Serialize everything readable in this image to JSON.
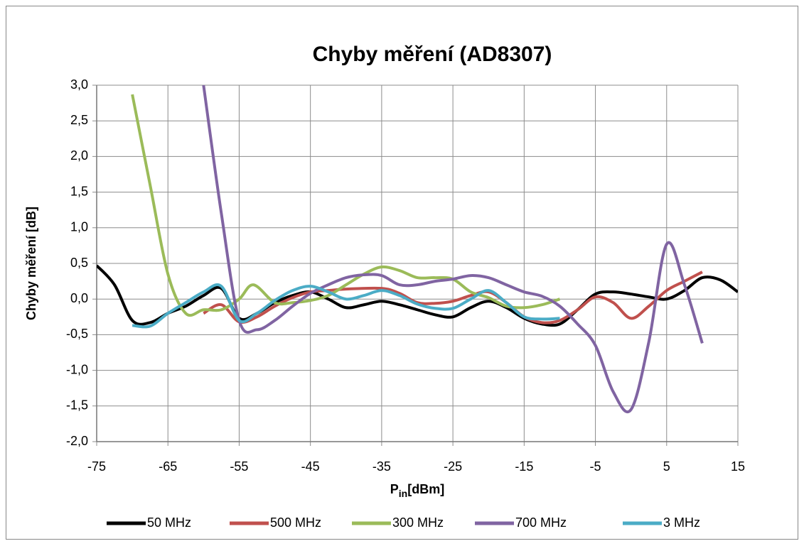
{
  "chart_data": {
    "type": "line",
    "title": "Chyby měření (AD8307)",
    "y_label": "Chyby měření [dB]",
    "x_label": {
      "main": "P",
      "sub": "in",
      "unit": "[dBm]"
    },
    "xlim": [
      -75,
      15
    ],
    "xticks": [
      -75,
      -65,
      -55,
      -45,
      -35,
      -25,
      -15,
      -5,
      5,
      15
    ],
    "ylim": [
      -2,
      3
    ],
    "yticks": [
      {
        "value": -2,
        "label": "-2,0"
      },
      {
        "value": -1.5,
        "label": "-1,5"
      },
      {
        "value": -1,
        "label": "-1,0"
      },
      {
        "value": -0.5,
        "label": "-0,5"
      },
      {
        "value": 0,
        "label": "0,0"
      },
      {
        "value": 0.5,
        "label": "0,5"
      },
      {
        "value": 1,
        "label": "1,0"
      },
      {
        "value": 1.5,
        "label": "1,5"
      },
      {
        "value": 2,
        "label": "2,0"
      },
      {
        "value": 2.5,
        "label": "2,5"
      },
      {
        "value": 3,
        "label": "3,0"
      }
    ],
    "grid": true,
    "legend": "bottom",
    "series": [
      {
        "name": "50 MHz",
        "color": "#000000",
        "x": [
          -75,
          -72.5,
          -70,
          -67.5,
          -65,
          -62.5,
          -60,
          -57.5,
          -55,
          -52.5,
          -50,
          -47.5,
          -45,
          -42.5,
          -40,
          -37.5,
          -35,
          -32.5,
          -30,
          -27.5,
          -25,
          -22.5,
          -20,
          -17.5,
          -15,
          -12.5,
          -10,
          -7.5,
          -5,
          -2.5,
          0,
          2.5,
          5,
          7.5,
          10,
          12.5,
          15
        ],
        "values": [
          0.47,
          0.2,
          -0.3,
          -0.33,
          -0.2,
          -0.1,
          0.05,
          0.15,
          -0.27,
          -0.2,
          -0.05,
          0.05,
          0.1,
          0.0,
          -0.12,
          -0.08,
          -0.03,
          -0.08,
          -0.15,
          -0.22,
          -0.25,
          -0.12,
          -0.03,
          -0.12,
          -0.27,
          -0.35,
          -0.35,
          -0.15,
          0.07,
          0.1,
          0.07,
          0.03,
          0.0,
          0.12,
          0.3,
          0.27,
          0.1
        ]
      },
      {
        "name": "500 MHz",
        "color": "#c0504d",
        "x": [
          -60,
          -57.5,
          -55,
          -52.5,
          -50,
          -47.5,
          -45,
          -42.5,
          -40,
          -35,
          -32.5,
          -30,
          -27.5,
          -25,
          -22.5,
          -20,
          -17.5,
          -15,
          -12.5,
          -10,
          -7.5,
          -5,
          -2.5,
          0,
          2.5,
          5,
          7.5,
          10
        ],
        "values": [
          -0.2,
          -0.08,
          -0.32,
          -0.25,
          -0.1,
          0.02,
          0.1,
          0.12,
          0.14,
          0.15,
          0.08,
          -0.05,
          -0.06,
          -0.03,
          0.05,
          0.1,
          -0.05,
          -0.25,
          -0.33,
          -0.3,
          -0.15,
          0.03,
          -0.05,
          -0.27,
          -0.1,
          0.12,
          0.25,
          0.38
        ]
      },
      {
        "name": "300 MHz",
        "color": "#9bbb59",
        "x": [
          -70,
          -67.5,
          -65,
          -62.5,
          -60,
          -57.5,
          -55,
          -53,
          -50,
          -47.5,
          -45,
          -42.5,
          -40,
          -37.5,
          -35,
          -32.5,
          -30,
          -27.5,
          -25,
          -22.5,
          -20,
          -17.5,
          -15,
          -12.5,
          -10
        ],
        "values": [
          2.87,
          1.6,
          0.35,
          -0.2,
          -0.15,
          -0.15,
          0.0,
          0.2,
          -0.05,
          -0.05,
          -0.02,
          0.05,
          0.2,
          0.35,
          0.45,
          0.4,
          0.3,
          0.3,
          0.28,
          0.1,
          0.02,
          -0.1,
          -0.12,
          -0.08,
          0.0
        ]
      },
      {
        "name": "700 MHz",
        "color": "#8064a2",
        "x": [
          -60,
          -57.5,
          -55,
          -52.5,
          -50,
          -47.5,
          -45,
          -42.5,
          -40,
          -37.5,
          -35,
          -32.5,
          -30,
          -27.5,
          -25,
          -22.5,
          -20,
          -17.5,
          -15,
          -12.5,
          -10,
          -7.5,
          -5,
          -2.5,
          0,
          2.5,
          5,
          7.5,
          10
        ],
        "values": [
          3.0,
          1.2,
          -0.3,
          -0.43,
          -0.3,
          -0.1,
          0.08,
          0.2,
          0.3,
          0.34,
          0.33,
          0.2,
          0.2,
          0.25,
          0.28,
          0.33,
          0.3,
          0.2,
          0.1,
          0.04,
          -0.1,
          -0.35,
          -0.65,
          -1.3,
          -1.55,
          -0.6,
          0.77,
          0.2,
          -0.62
        ]
      },
      {
        "name": "3 MHz",
        "color": "#4bacc6",
        "x": [
          -70,
          -67.5,
          -65,
          -62.5,
          -60,
          -57.5,
          -55,
          -52.5,
          -50,
          -47.5,
          -45,
          -42.5,
          -40,
          -37.5,
          -35,
          -32.5,
          -30,
          -27.5,
          -25,
          -22.5,
          -20,
          -17.5,
          -15,
          -12.5,
          -10
        ],
        "values": [
          -0.37,
          -0.38,
          -0.2,
          -0.05,
          0.1,
          0.18,
          -0.3,
          -0.2,
          -0.02,
          0.12,
          0.18,
          0.1,
          0.0,
          0.05,
          0.12,
          0.05,
          -0.07,
          -0.13,
          -0.13,
          0.0,
          0.12,
          -0.05,
          -0.25,
          -0.28,
          -0.27
        ]
      }
    ]
  }
}
